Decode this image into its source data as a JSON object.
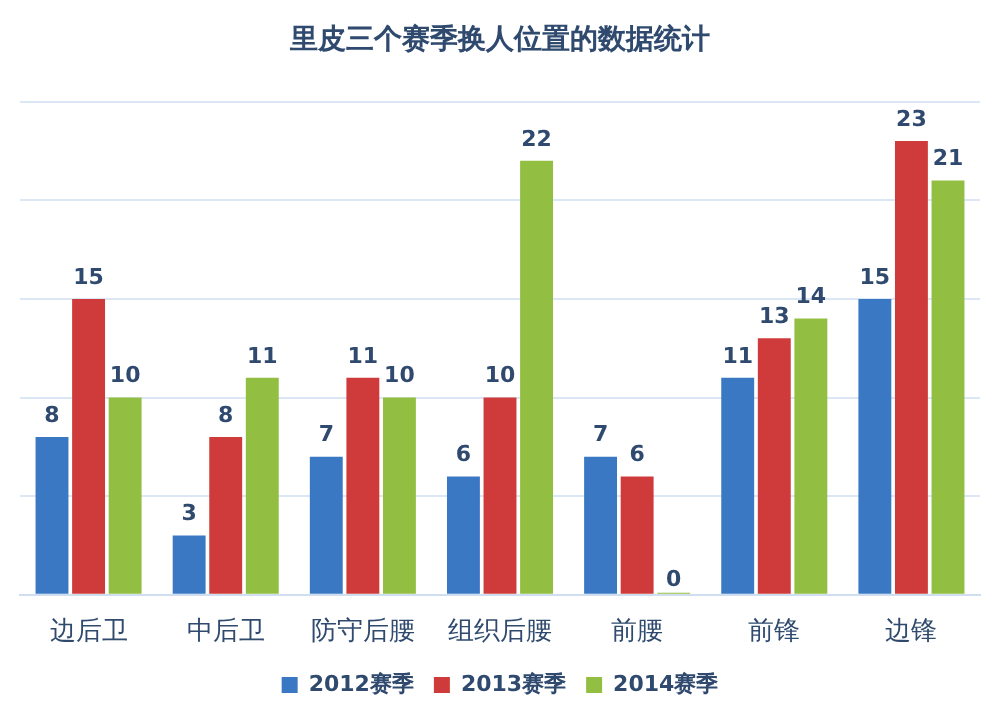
{
  "chart_data": {
    "type": "bar",
    "title": "里皮三个赛季换人位置的数据统计",
    "categories": [
      "边后卫",
      "中后卫",
      "防守后腰",
      "组织后腰",
      "前腰",
      "前锋",
      "边锋"
    ],
    "series": [
      {
        "name": "2012赛季",
        "color": "#3a78c3",
        "values": [
          8,
          3,
          7,
          6,
          7,
          11,
          15
        ]
      },
      {
        "name": "2013赛季",
        "color": "#cf3b3b",
        "values": [
          15,
          8,
          11,
          10,
          6,
          13,
          23
        ]
      },
      {
        "name": "2014赛季",
        "color": "#92bf42",
        "values": [
          10,
          11,
          10,
          22,
          0,
          14,
          21
        ]
      }
    ],
    "ylim": [
      0,
      25
    ],
    "yticks": [
      {
        "value": 0,
        "label": null
      },
      {
        "value": 5,
        "label": null
      },
      {
        "value": 10,
        "label": null
      },
      {
        "value": 15,
        "label": null
      },
      {
        "value": 20,
        "label": null
      },
      {
        "value": 25,
        "label": null
      }
    ],
    "grid": "y",
    "tick_labels": "x",
    "legend": "bottom",
    "data_labels": true
  }
}
